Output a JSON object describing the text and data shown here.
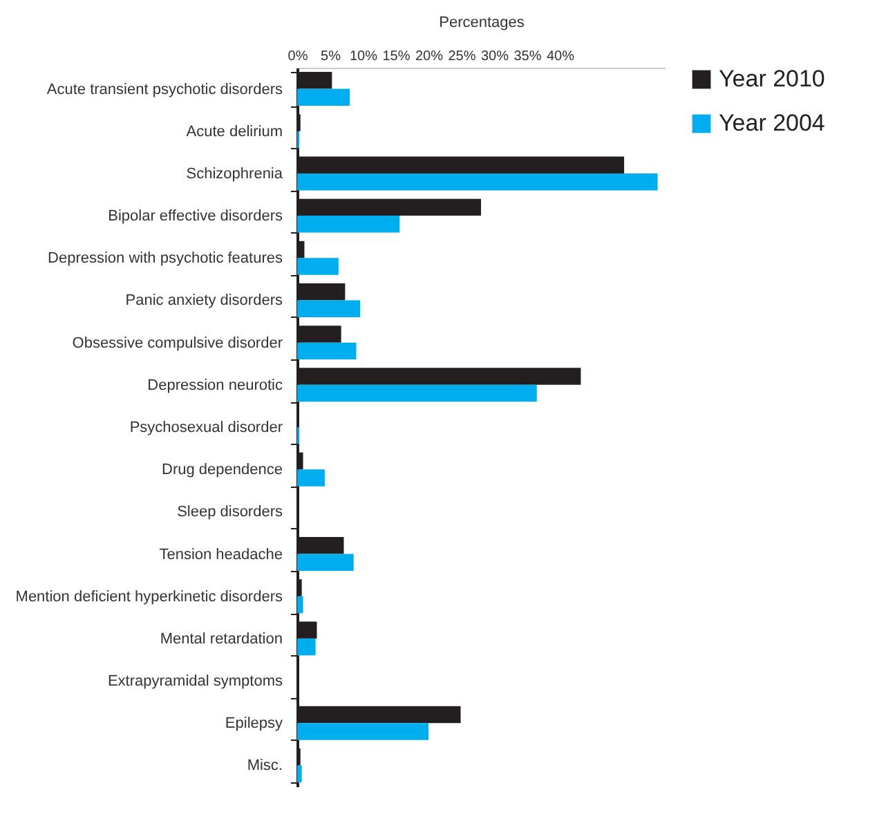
{
  "chart_data": {
    "type": "bar",
    "orientation": "horizontal",
    "xlabel": "Percentages",
    "categories": [
      "Acute transient psychotic disorders",
      "Acute delirium",
      "Schizophrenia",
      "Bipolar effective disorders",
      "Depression with psychotic features",
      "Panic anxiety disorders",
      "Obsessive compulsive disorder",
      "Depression neurotic",
      "Psychosexual disorder",
      "Drug dependence",
      "Sleep disorders",
      "Tension headache",
      "Mention deficient hyperkinetic disorders",
      "Mental retardation",
      "Extrapyramidal symptoms",
      "Epilepsy",
      "Misc."
    ],
    "series": [
      {
        "name": "Year 2010",
        "color": "#231f20",
        "values": [
          5.3,
          0.5,
          49.8,
          28.0,
          1.1,
          7.3,
          6.7,
          43.2,
          0,
          0.9,
          0,
          7.1,
          0.7,
          3.0,
          0,
          24.9,
          0.5
        ]
      },
      {
        "name": "Year 2004",
        "color": "#00aeef",
        "values": [
          8.0,
          0.3,
          54.9,
          15.6,
          6.3,
          9.6,
          9.0,
          36.5,
          0.3,
          4.2,
          0,
          8.6,
          0.9,
          2.8,
          0,
          20.0,
          0.7
        ]
      }
    ],
    "xlim": [
      0,
      56
    ],
    "xticks": [
      {
        "value": 0,
        "label": "0%"
      },
      {
        "value": 5,
        "label": "5%"
      },
      {
        "value": 10,
        "label": "10%"
      },
      {
        "value": 15,
        "label": "15%"
      },
      {
        "value": 20,
        "label": "20%"
      },
      {
        "value": 25,
        "label": "25%"
      },
      {
        "value": 30,
        "label": "30%"
      },
      {
        "value": 35,
        "label": "35%"
      },
      {
        "value": 40,
        "label": "40%"
      }
    ],
    "grid": false,
    "legend": "right"
  }
}
